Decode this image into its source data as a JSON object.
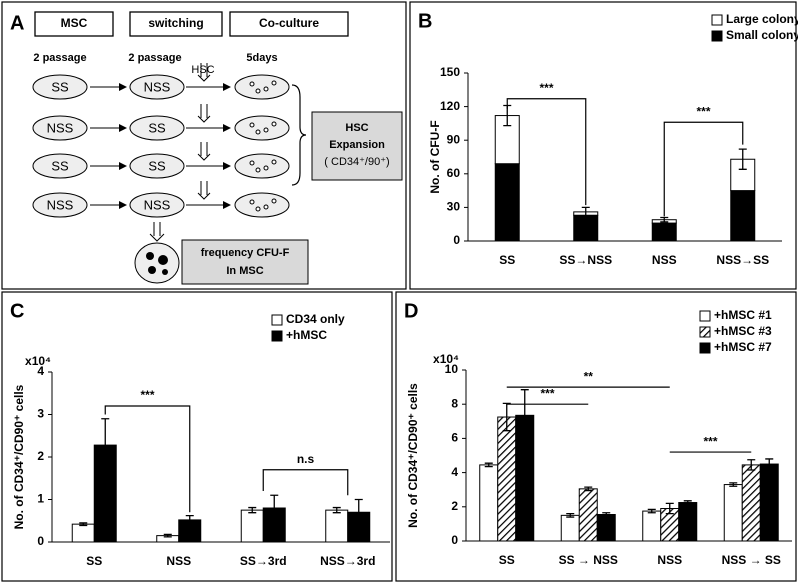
{
  "diagram": {
    "panel_label": "A",
    "headers": [
      "MSC",
      "switching",
      "Co-culture"
    ],
    "steps": [
      "2 passage",
      "2 passage",
      "HSC",
      "5days"
    ],
    "dishes": [
      [
        "SS",
        "NSS"
      ],
      [
        "NSS",
        "SS"
      ],
      [
        "SS",
        "SS"
      ],
      [
        "NSS",
        "NSS"
      ]
    ],
    "expansion_box": [
      "HSC",
      "Expansion",
      "( CD34⁺/90⁺)"
    ],
    "frequency_box": [
      "frequency CFU-F",
      "In MSC"
    ]
  },
  "chart_data": [
    {
      "panel_label": "B",
      "type": "bar",
      "stacked": true,
      "ylabel": "No. of CFU-F",
      "categories": [
        "SS",
        "SS→NSS",
        "NSS",
        "NSS→SS"
      ],
      "series": [
        {
          "name": "Small colony",
          "color": "#000000",
          "values": [
            69,
            23,
            16,
            45
          ],
          "errors": [
            6,
            2,
            2,
            3
          ]
        },
        {
          "name": "Large colony",
          "color": "#ffffff",
          "values": [
            43,
            3,
            3,
            28
          ],
          "errors": [
            9,
            4,
            2,
            9
          ]
        }
      ],
      "ylim": [
        0,
        150
      ],
      "yticks": [
        0,
        30,
        60,
        90,
        120,
        150
      ],
      "legend": "upper right",
      "annotations": [
        {
          "text": "***"
        },
        {
          "text": "***"
        }
      ]
    },
    {
      "panel_label": "C",
      "type": "bar",
      "stacked": false,
      "ylabel": "No. of CD34⁺/CD90⁺ cells",
      "y_multiplier": "x10⁴",
      "categories": [
        "SS",
        "NSS",
        "SS→3rd",
        "NSS→3rd"
      ],
      "series": [
        {
          "name": "CD34 only",
          "color": "#ffffff",
          "values": [
            0.42,
            0.15,
            0.75,
            0.75
          ],
          "errors": [
            0.03,
            0.03,
            0.06,
            0.06
          ]
        },
        {
          "name": "+hMSC",
          "color": "#000000",
          "values": [
            2.28,
            0.52,
            0.8,
            0.7
          ],
          "errors": [
            0.62,
            0.1,
            0.3,
            0.3
          ]
        }
      ],
      "ylim": [
        0,
        4
      ],
      "yticks": [
        0,
        1,
        2,
        3,
        4
      ],
      "legend": "upper right",
      "annotations": [
        {
          "text": "***"
        },
        {
          "text": "n.s"
        }
      ]
    },
    {
      "panel_label": "D",
      "type": "bar",
      "stacked": false,
      "ylabel": "No. of CD34⁺/CD90⁺ cells",
      "y_multiplier": "x10⁴",
      "categories": [
        "SS",
        "SS → NSS",
        "NSS",
        "NSS → SS"
      ],
      "series": [
        {
          "name": "+hMSC #1",
          "color": "#ffffff",
          "values": [
            4.45,
            1.5,
            1.75,
            3.3
          ],
          "errors": [
            0.1,
            0.1,
            0.1,
            0.1
          ]
        },
        {
          "name": "+hMSC #3",
          "color": "#ffffff",
          "hatch": true,
          "values": [
            7.25,
            3.05,
            1.9,
            4.45
          ],
          "errors": [
            0.8,
            0.1,
            0.3,
            0.3
          ]
        },
        {
          "name": "+hMSC #7",
          "color": "#000000",
          "values": [
            7.35,
            1.55,
            2.25,
            4.5
          ],
          "errors": [
            1.5,
            0.1,
            0.1,
            0.3
          ]
        }
      ],
      "ylim": [
        0,
        10
      ],
      "yticks": [
        0,
        2,
        4,
        6,
        8,
        10
      ],
      "legend": "upper right",
      "annotations": [
        {
          "text": "**"
        },
        {
          "text": "***"
        },
        {
          "text": "***"
        }
      ]
    }
  ]
}
